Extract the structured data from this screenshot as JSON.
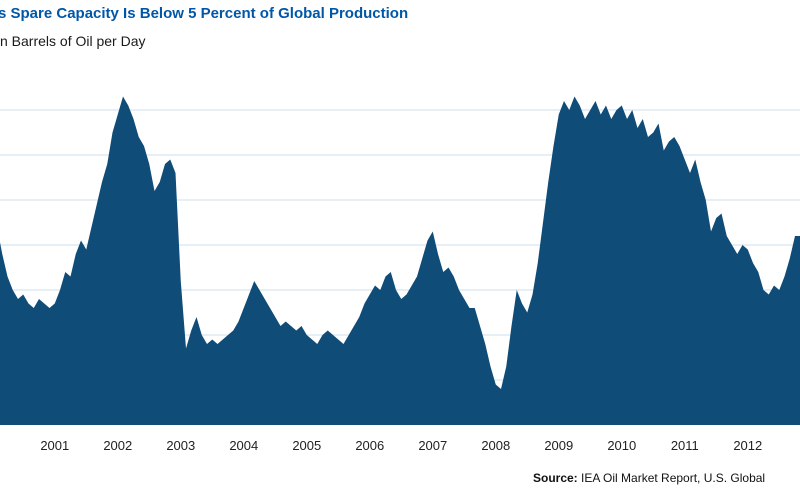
{
  "header": {
    "title": "s Spare Capacity Is Below 5 Percent of Global Production",
    "subtitle": "n Barrels of Oil per Day"
  },
  "footer": {
    "source_label": "Source:",
    "source_text": " IEA Oil Market Report, U.S. Global"
  },
  "chart_data": {
    "type": "area",
    "title": "s Spare Capacity Is Below 5 Percent of Global Production",
    "subtitle": "n Barrels of Oil per Day",
    "unit": "million barrels of oil per day",
    "frequency": "monthly",
    "start_year": 2000,
    "start_month": 2,
    "categories": [
      "2001",
      "2002",
      "2003",
      "2004",
      "2005",
      "2006",
      "2007",
      "2008",
      "2009",
      "2010",
      "2011",
      "2012"
    ],
    "values": [
      4.4,
      3.8,
      3.3,
      3.0,
      2.8,
      2.9,
      2.7,
      2.6,
      2.8,
      2.7,
      2.6,
      2.7,
      3.0,
      3.4,
      3.3,
      3.8,
      4.1,
      3.9,
      4.4,
      4.9,
      5.4,
      5.8,
      6.5,
      6.9,
      7.3,
      7.1,
      6.8,
      6.4,
      6.2,
      5.8,
      5.2,
      5.4,
      5.8,
      5.9,
      5.6,
      3.2,
      1.7,
      2.1,
      2.4,
      2.0,
      1.8,
      1.9,
      1.8,
      1.9,
      2.0,
      2.1,
      2.3,
      2.6,
      2.9,
      3.2,
      3.0,
      2.8,
      2.6,
      2.4,
      2.2,
      2.3,
      2.2,
      2.1,
      2.2,
      2.0,
      1.9,
      1.8,
      2.0,
      2.1,
      2.0,
      1.9,
      1.8,
      2.0,
      2.2,
      2.4,
      2.7,
      2.9,
      3.1,
      3.0,
      3.3,
      3.4,
      3.0,
      2.8,
      2.9,
      3.1,
      3.3,
      3.7,
      4.1,
      4.3,
      3.8,
      3.4,
      3.5,
      3.3,
      3.0,
      2.8,
      2.6,
      2.6,
      2.2,
      1.8,
      1.3,
      0.9,
      0.8,
      1.3,
      2.2,
      3.0,
      2.7,
      2.5,
      2.9,
      3.6,
      4.5,
      5.4,
      6.2,
      6.9,
      7.2,
      7.0,
      7.3,
      7.1,
      6.8,
      7.0,
      7.2,
      6.9,
      7.1,
      6.8,
      7.0,
      7.1,
      6.8,
      7.0,
      6.6,
      6.8,
      6.4,
      6.5,
      6.7,
      6.1,
      6.3,
      6.4,
      6.2,
      5.9,
      5.6,
      5.9,
      5.4,
      5.0,
      4.3,
      4.6,
      4.7,
      4.2,
      4.0,
      3.8,
      4.0,
      3.9,
      3.6,
      3.4,
      3.0,
      2.9,
      3.1,
      3.0,
      3.3,
      3.7,
      4.2
    ],
    "ylim": [
      0,
      7.5
    ],
    "gridlines": [
      1,
      2,
      3,
      4,
      5,
      6,
      7
    ],
    "grid": true,
    "legend": "none",
    "colors": {
      "area": "#0f4c78",
      "gridline": "#ccdded",
      "title": "#0057a8",
      "axis_label": "#222222"
    }
  }
}
